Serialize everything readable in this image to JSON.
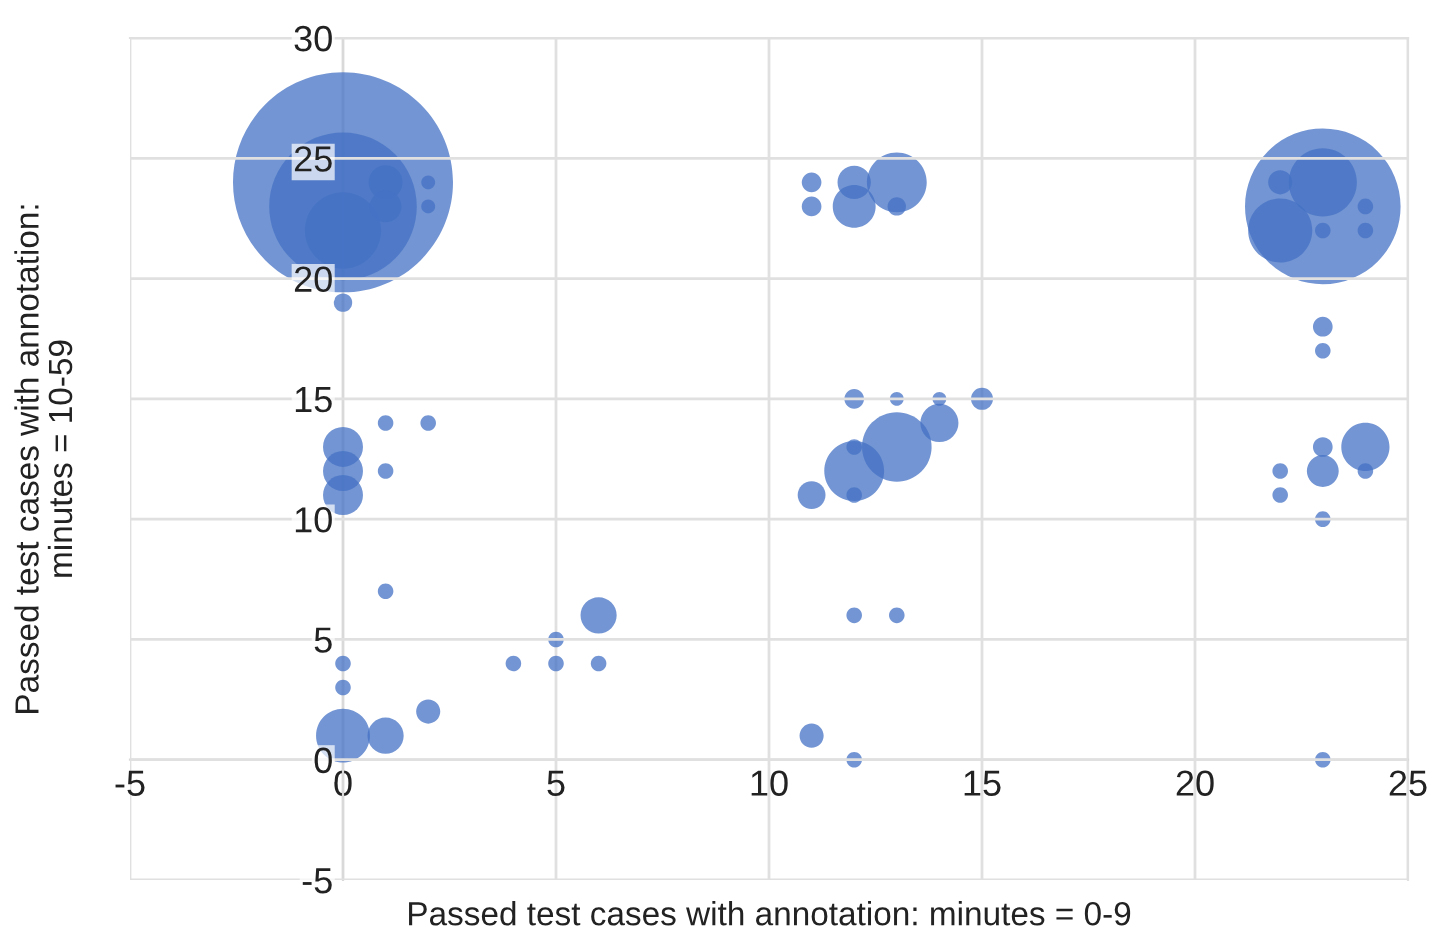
{
  "chart_data": {
    "type": "bubble",
    "xlabel": "Passed test cases with annotation: minutes = 0-9",
    "ylabel": "Passed test cases with annotation:\nminutes = 10-59",
    "xlim": [
      -5,
      25
    ],
    "xticks": [
      -5,
      0,
      5,
      10,
      15,
      20,
      25
    ],
    "ylim": [
      -5,
      30
    ],
    "yticks": [
      -5,
      0,
      5,
      10,
      15,
      20,
      25,
      30
    ],
    "grid": true,
    "relative": false,
    "series": [
      {
        "color": "#4472c4",
        "x": [
          0,
          0,
          0,
          1,
          1,
          2,
          2,
          0,
          1,
          2,
          0,
          0,
          0,
          1,
          1,
          0,
          0,
          0,
          1,
          2,
          4,
          5,
          5,
          6,
          6,
          11,
          11,
          12,
          12,
          13,
          13,
          12,
          13,
          14,
          15,
          14,
          13,
          12,
          12,
          12,
          11,
          12,
          13,
          11,
          12,
          23,
          23,
          22,
          22,
          24,
          24,
          23,
          23,
          23,
          24,
          24,
          23,
          23,
          22,
          22,
          23,
          23
        ],
        "values": [
          24,
          23,
          22,
          24,
          23,
          24,
          23,
          19,
          14,
          14,
          13,
          12,
          11,
          12,
          7,
          4,
          3,
          1,
          1,
          2,
          4,
          5,
          4,
          4,
          6,
          24,
          23,
          24,
          23,
          24,
          23,
          15,
          15,
          15,
          15,
          14,
          13,
          12,
          13,
          11,
          11,
          6,
          6,
          1,
          0,
          23,
          24,
          22,
          24,
          23,
          22,
          22,
          18,
          17,
          13,
          12,
          13,
          12,
          12,
          11,
          10,
          0
        ],
        "sizes": [
          1,
          0.45,
          0.12,
          0.024,
          0.021,
          0.004,
          0.004,
          0.007,
          0.005,
          0.005,
          0.033,
          0.033,
          0.033,
          0.005,
          0.005,
          0.005,
          0.005,
          0.06,
          0.027,
          0.012,
          0.005,
          0.005,
          0.005,
          0.005,
          0.027,
          0.008,
          0.008,
          0.023,
          0.038,
          0.074,
          0.007,
          0.008,
          0.004,
          0.004,
          0.01,
          0.03,
          0.1,
          0.074,
          0.005,
          0.005,
          0.016,
          0.005,
          0.005,
          0.012,
          0.005,
          0.5,
          0.096,
          0.085,
          0.012,
          0.005,
          0.005,
          0.005,
          0.008,
          0.005,
          0.048,
          0.005,
          0.008,
          0.021,
          0.005,
          0.005,
          0.005,
          0.005
        ]
      }
    ]
  }
}
